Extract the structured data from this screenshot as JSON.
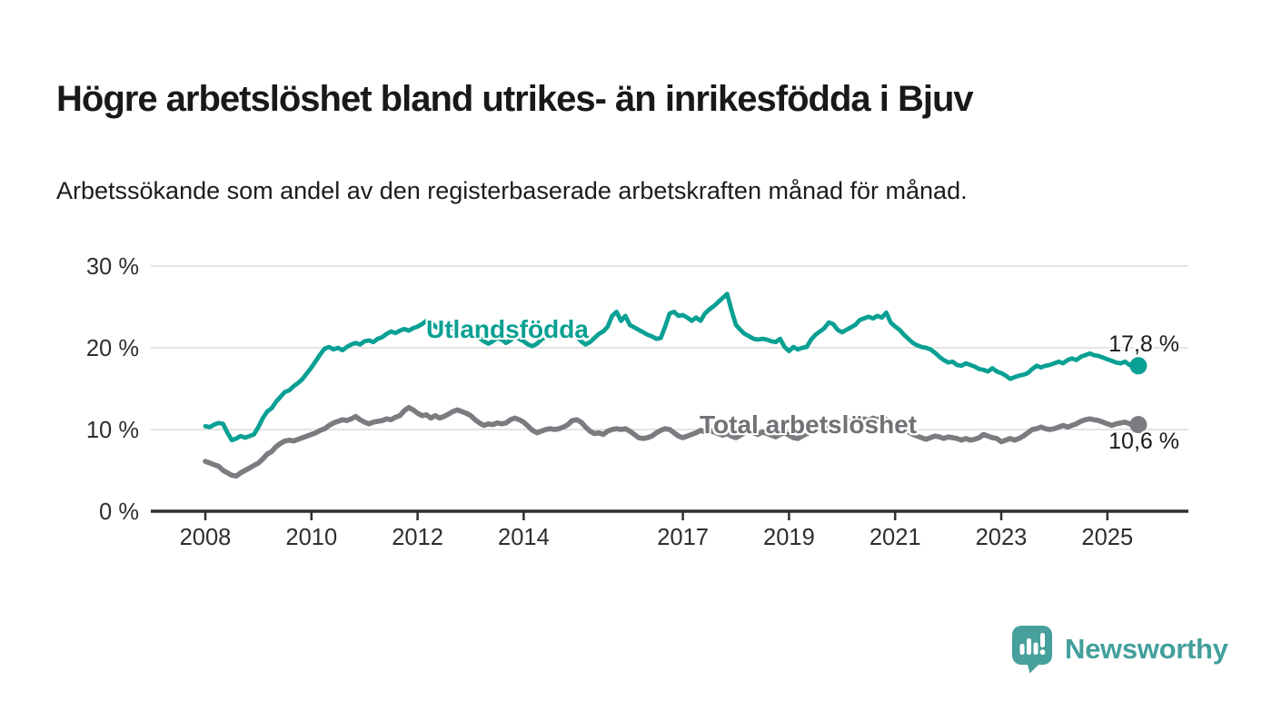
{
  "title": "Högre arbetslöshet bland utrikes- än inrikesfödda i Bjuv",
  "subtitle": "Arbetssökande som andel av den registerbaserade arbetskraften månad för månad.",
  "branding": {
    "name": "Newsworthy",
    "logo_icon": "bar-chart-speech-bubble-icon",
    "text_color": "#43A09C",
    "icon_color": "#47A09B"
  },
  "colors": {
    "accent_teal": "#0AA093",
    "accent_gray": "#7B7B80",
    "gray_label": "#717176",
    "grid": "#DCDCDC",
    "axis": "#2F2F2F",
    "tick_text": "#2E2E2E",
    "text": "#191919"
  },
  "chart_data": {
    "type": "line",
    "title": "Högre arbetslöshet bland utrikes- än inrikesfödda i Bjuv",
    "subtitle": "Arbetssökande som andel av den registerbaserade arbetskraften månad för månad.",
    "xlabel": "",
    "ylabel": "",
    "unit": "%",
    "frequency": "monthly",
    "x_start_year": 2008,
    "x_end_label_year": 2025.58,
    "xlim": [
      2007.0,
      2026.5
    ],
    "ylim": [
      0,
      30
    ],
    "grid": "horizontal",
    "legend_position": "inline-labels",
    "x_ticks": [
      2008,
      2010,
      2012,
      2014,
      2017,
      2019,
      2021,
      2023,
      2025
    ],
    "x_tick_labels": [
      "2008",
      "2010",
      "2012",
      "2014",
      "2017",
      "2019",
      "2021",
      "2023",
      "2025"
    ],
    "y_ticks": [
      0,
      10,
      20,
      30
    ],
    "y_tick_labels": [
      "0 %",
      "10 %",
      "20 %",
      "30 %"
    ],
    "series": [
      {
        "name": "Utlandsfödda",
        "color": "#0AA093",
        "end_label": "17,8 %",
        "end_value": 17.8,
        "values": [
          10.4,
          10.3,
          10.6,
          10.8,
          10.7,
          9.6,
          8.7,
          8.9,
          9.2,
          9.0,
          9.2,
          9.4,
          10.3,
          11.4,
          12.2,
          12.6,
          13.4,
          14.0,
          14.6,
          14.8,
          15.3,
          15.7,
          16.2,
          16.9,
          17.6,
          18.4,
          19.2,
          19.9,
          20.1,
          19.8,
          20.0,
          19.7,
          20.1,
          20.4,
          20.6,
          20.4,
          20.8,
          20.9,
          20.7,
          21.1,
          21.3,
          21.7,
          22.0,
          21.8,
          22.1,
          22.3,
          22.1,
          22.4,
          22.6,
          22.9,
          23.3,
          23.1,
          22.6,
          22.3,
          22.5,
          22.2,
          22.4,
          22.1,
          22.3,
          22.5,
          22.3,
          21.8,
          21.2,
          20.8,
          20.5,
          20.8,
          21.2,
          21.0,
          20.6,
          20.9,
          21.4,
          21.1,
          20.8,
          20.4,
          20.2,
          20.5,
          21.0,
          21.4,
          21.2,
          21.6,
          21.4,
          21.7,
          21.5,
          21.8,
          21.3,
          20.8,
          20.4,
          20.7,
          21.2,
          21.7,
          22.0,
          22.6,
          23.9,
          24.4,
          23.3,
          23.9,
          22.8,
          22.5,
          22.2,
          21.9,
          21.6,
          21.4,
          21.1,
          21.2,
          22.6,
          24.2,
          24.4,
          23.9,
          24.0,
          23.7,
          23.3,
          23.7,
          23.3,
          24.2,
          24.7,
          25.1,
          25.6,
          26.1,
          26.6,
          24.6,
          22.8,
          22.2,
          21.7,
          21.4,
          21.1,
          21.0,
          21.1,
          21.0,
          20.8,
          20.7,
          21.1,
          20.1,
          19.6,
          20.1,
          19.8,
          20.0,
          20.1,
          21.0,
          21.6,
          22.0,
          22.4,
          23.1,
          22.9,
          22.2,
          21.9,
          22.2,
          22.5,
          22.8,
          23.4,
          23.6,
          23.8,
          23.6,
          23.9,
          23.7,
          24.3,
          23.1,
          22.6,
          22.2,
          21.6,
          21.1,
          20.6,
          20.3,
          20.1,
          20.0,
          19.8,
          19.4,
          18.9,
          18.5,
          18.2,
          18.3,
          17.9,
          17.8,
          18.1,
          17.9,
          17.7,
          17.4,
          17.3,
          17.1,
          17.5,
          17.1,
          16.9,
          16.6,
          16.2,
          16.4,
          16.6,
          16.7,
          16.9,
          17.4,
          17.8,
          17.6,
          17.8,
          17.9,
          18.1,
          18.3,
          18.1,
          18.5,
          18.7,
          18.5,
          18.9,
          19.1,
          19.3,
          19.1,
          19.0,
          18.8,
          18.6,
          18.4,
          18.2,
          18.1,
          18.3,
          17.9,
          18.1,
          17.8
        ]
      },
      {
        "name": "Total arbetslöshet",
        "color": "#7B7B80",
        "end_label": "10,6 %",
        "end_value": 10.6,
        "values": [
          6.1,
          5.9,
          5.7,
          5.5,
          5.0,
          4.7,
          4.4,
          4.3,
          4.7,
          5.0,
          5.3,
          5.6,
          5.9,
          6.4,
          7.0,
          7.3,
          7.9,
          8.3,
          8.6,
          8.7,
          8.6,
          8.8,
          9.0,
          9.2,
          9.4,
          9.6,
          9.9,
          10.1,
          10.5,
          10.8,
          11.0,
          11.2,
          11.1,
          11.3,
          11.6,
          11.2,
          10.9,
          10.7,
          10.9,
          11.0,
          11.1,
          11.3,
          11.2,
          11.5,
          11.7,
          12.3,
          12.7,
          12.4,
          12.0,
          11.7,
          11.8,
          11.4,
          11.7,
          11.4,
          11.6,
          11.9,
          12.2,
          12.4,
          12.2,
          12.0,
          11.7,
          11.2,
          10.8,
          10.5,
          10.7,
          10.6,
          10.8,
          10.7,
          10.8,
          11.2,
          11.4,
          11.2,
          10.9,
          10.4,
          9.9,
          9.6,
          9.8,
          10.0,
          10.1,
          10.0,
          10.1,
          10.3,
          10.6,
          11.1,
          11.2,
          10.9,
          10.3,
          9.8,
          9.5,
          9.6,
          9.4,
          9.8,
          10.0,
          10.1,
          10.0,
          10.1,
          9.8,
          9.4,
          9.0,
          8.9,
          9.0,
          9.2,
          9.6,
          9.9,
          10.1,
          10.0,
          9.6,
          9.2,
          9.0,
          9.2,
          9.4,
          9.6,
          9.9,
          9.7,
          9.9,
          9.7,
          9.5,
          9.3,
          9.5,
          9.2,
          9.0,
          9.3,
          9.6,
          9.8,
          9.6,
          9.4,
          9.7,
          9.5,
          9.3,
          9.1,
          9.4,
          9.6,
          9.3,
          9.0,
          8.9,
          9.2,
          9.5,
          9.7,
          9.9,
          10.1,
          10.3,
          10.1,
          10.4,
          10.6,
          10.4,
          10.7,
          11.0,
          11.2,
          11.0,
          11.3,
          11.1,
          11.4,
          11.2,
          11.4,
          11.2,
          11.0,
          10.8,
          10.4,
          10.0,
          9.7,
          9.4,
          9.2,
          9.0,
          8.8,
          9.0,
          9.2,
          9.1,
          8.9,
          9.1,
          9.0,
          8.9,
          8.7,
          8.9,
          8.7,
          8.8,
          9.0,
          9.4,
          9.2,
          9.0,
          8.9,
          8.5,
          8.7,
          8.9,
          8.7,
          8.9,
          9.2,
          9.6,
          10.0,
          10.1,
          10.3,
          10.1,
          10.0,
          10.1,
          10.3,
          10.5,
          10.3,
          10.5,
          10.7,
          11.0,
          11.2,
          11.3,
          11.2,
          11.1,
          10.9,
          10.7,
          10.5,
          10.7,
          10.8,
          10.9,
          10.7,
          10.8,
          10.6
        ]
      }
    ]
  }
}
